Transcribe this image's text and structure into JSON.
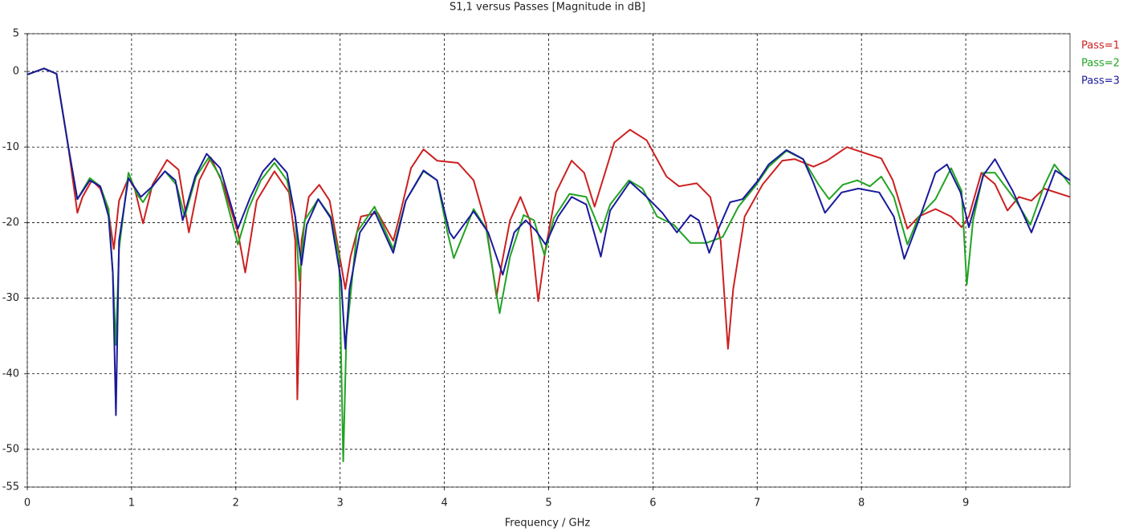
{
  "chart_data": {
    "type": "line",
    "title": "S1,1 versus Passes [Magnitude in dB]",
    "xlabel": "Frequency / GHz",
    "xlim": [
      0,
      10
    ],
    "xticks": [
      0,
      1,
      2,
      3,
      4,
      5,
      6,
      7,
      8,
      9
    ],
    "ylim": [
      -55,
      5
    ],
    "yticks": [
      5,
      0,
      -10,
      -20,
      -30,
      -40,
      -50,
      -55
    ],
    "grid": true,
    "legend": "top-right",
    "series": [
      {
        "name": "Pass=1",
        "color": "#cc2020",
        "x": [
          0,
          0.16,
          0.28,
          0.39,
          0.48,
          0.53,
          0.62,
          0.7,
          0.78,
          0.83,
          0.88,
          0.97,
          1.03,
          1.11,
          1.2,
          1.34,
          1.45,
          1.55,
          1.65,
          1.76,
          1.88,
          2.02,
          2.09,
          2.2,
          2.37,
          2.51,
          2.57,
          2.59,
          2.63,
          2.7,
          2.8,
          2.9,
          3.01,
          3.05,
          3.1,
          3.2,
          3.36,
          3.51,
          3.57,
          3.68,
          3.8,
          3.93,
          4.13,
          4.28,
          4.4,
          4.5,
          4.55,
          4.63,
          4.73,
          4.82,
          4.9,
          4.97,
          5.07,
          5.22,
          5.34,
          5.44,
          5.53,
          5.63,
          5.78,
          5.94,
          6.13,
          6.25,
          6.42,
          6.55,
          6.65,
          6.72,
          6.77,
          6.88,
          7.05,
          7.24,
          7.36,
          7.54,
          7.67,
          7.86,
          8.01,
          8.19,
          8.3,
          8.44,
          8.55,
          8.71,
          8.86,
          8.96,
          9.03,
          9.15,
          9.28,
          9.4,
          9.51,
          9.63,
          9.75,
          10
        ],
        "values": [
          -0.4,
          0.4,
          -0.3,
          -9.7,
          -18.7,
          -16.6,
          -14.4,
          -15.5,
          -18.7,
          -23.5,
          -17.1,
          -14.1,
          -15.5,
          -20.1,
          -15,
          -11.7,
          -13,
          -21.3,
          -14.4,
          -11.4,
          -15,
          -21.3,
          -26.6,
          -17.1,
          -13.2,
          -16,
          -22.4,
          -43.4,
          -22.4,
          -16.6,
          -15,
          -17.1,
          -25.6,
          -28.8,
          -24.5,
          -19.2,
          -18.7,
          -22.4,
          -19.2,
          -12.8,
          -10.3,
          -11.8,
          -12.1,
          -14.4,
          -20.3,
          -29.8,
          -25.5,
          -19.7,
          -16.6,
          -19.7,
          -30.4,
          -23.5,
          -16,
          -11.8,
          -13.4,
          -17.9,
          -13.9,
          -9.4,
          -7.7,
          -9.1,
          -13.9,
          -15.2,
          -14.8,
          -16.6,
          -22.4,
          -36.7,
          -28.8,
          -19.2,
          -15,
          -11.8,
          -11.6,
          -12.6,
          -11.8,
          -10,
          -10.7,
          -11.5,
          -14.4,
          -20.8,
          -19.2,
          -18.2,
          -19.2,
          -20.6,
          -19.2,
          -13.4,
          -14.9,
          -18.4,
          -16.6,
          -17.1,
          -15.5,
          -16.6
        ]
      },
      {
        "name": "Pass=2",
        "color": "#22a322",
        "x": [
          0,
          0.16,
          0.28,
          0.39,
          0.48,
          0.6,
          0.7,
          0.78,
          0.82,
          0.85,
          0.88,
          0.97,
          1.05,
          1.11,
          1.22,
          1.32,
          1.43,
          1.51,
          1.62,
          1.74,
          1.85,
          2.02,
          2.12,
          2.24,
          2.37,
          2.49,
          2.57,
          2.61,
          2.66,
          2.79,
          2.91,
          2.99,
          3.03,
          3.06,
          3.16,
          3.33,
          3.51,
          3.63,
          3.8,
          3.93,
          4.03,
          4.09,
          4.28,
          4.4,
          4.53,
          4.63,
          4.76,
          4.86,
          4.96,
          5.05,
          5.2,
          5.36,
          5.5,
          5.59,
          5.77,
          5.9,
          6.04,
          6.2,
          6.36,
          6.51,
          6.67,
          6.82,
          6.98,
          7.11,
          7.28,
          7.44,
          7.59,
          7.69,
          7.82,
          7.96,
          8.08,
          8.19,
          8.31,
          8.44,
          8.55,
          8.71,
          8.86,
          8.96,
          9.01,
          9.07,
          9.17,
          9.28,
          9.48,
          9.62,
          9.75,
          9.85,
          10
        ],
        "values": [
          -0.4,
          0.4,
          -0.3,
          -9.7,
          -16.9,
          -14.1,
          -15.2,
          -18.2,
          -26.6,
          -36.2,
          -23.5,
          -13.4,
          -16.2,
          -17.3,
          -14.8,
          -13.2,
          -15,
          -19.2,
          -13.9,
          -11.4,
          -13.9,
          -22.9,
          -18.2,
          -14.4,
          -12.1,
          -14.4,
          -19.2,
          -27.7,
          -19.7,
          -16.9,
          -19.2,
          -24.5,
          -51.6,
          -35.1,
          -21.3,
          -17.9,
          -23.5,
          -17.1,
          -13.2,
          -14.4,
          -21.3,
          -24.7,
          -18.2,
          -20.8,
          -32,
          -24.5,
          -19,
          -19.7,
          -24.3,
          -19.4,
          -16.2,
          -16.6,
          -21.3,
          -17.6,
          -14.4,
          -15.5,
          -19.2,
          -20.3,
          -22.7,
          -22.7,
          -21.9,
          -17.9,
          -15.2,
          -12.6,
          -10.5,
          -11.6,
          -15,
          -16.9,
          -15,
          -14.4,
          -15.2,
          -13.9,
          -16.6,
          -22.9,
          -19.2,
          -16.9,
          -12.8,
          -15.8,
          -28.2,
          -19.7,
          -13.4,
          -13.4,
          -17.1,
          -20.3,
          -15.2,
          -12.3,
          -15
        ]
      },
      {
        "name": "Pass=3",
        "color": "#1a1a9c",
        "x": [
          0,
          0.16,
          0.28,
          0.39,
          0.48,
          0.6,
          0.7,
          0.78,
          0.82,
          0.85,
          0.88,
          0.97,
          1.09,
          1.2,
          1.32,
          1.42,
          1.49,
          1.61,
          1.72,
          1.85,
          2.02,
          2.14,
          2.26,
          2.37,
          2.49,
          2.57,
          2.63,
          2.68,
          2.79,
          2.91,
          3.01,
          3.05,
          3.09,
          3.19,
          3.33,
          3.51,
          3.63,
          3.8,
          3.93,
          4.05,
          4.09,
          4.28,
          4.42,
          4.56,
          4.67,
          4.78,
          4.88,
          4.97,
          5.09,
          5.22,
          5.36,
          5.5,
          5.59,
          5.78,
          5.94,
          6.09,
          6.23,
          6.36,
          6.44,
          6.54,
          6.63,
          6.74,
          6.86,
          7.01,
          7.11,
          7.28,
          7.44,
          7.53,
          7.65,
          7.81,
          7.97,
          8.17,
          8.31,
          8.41,
          8.55,
          8.71,
          8.82,
          8.95,
          9.03,
          9.09,
          9.17,
          9.28,
          9.45,
          9.63,
          9.75,
          9.86,
          10
        ],
        "values": [
          -0.4,
          0.4,
          -0.3,
          -9.7,
          -16.9,
          -14.4,
          -15.2,
          -19.2,
          -26.6,
          -45.5,
          -22.4,
          -14.1,
          -16.6,
          -15.2,
          -13.2,
          -14.4,
          -19.7,
          -13.9,
          -10.9,
          -12.8,
          -20.8,
          -16.6,
          -13.2,
          -11.5,
          -13.4,
          -19.2,
          -25.6,
          -20.3,
          -16.9,
          -19.4,
          -27.7,
          -36.7,
          -28.8,
          -21.3,
          -18.5,
          -24,
          -17.1,
          -13.1,
          -14.4,
          -21.3,
          -22.1,
          -18.5,
          -21.3,
          -26.9,
          -21.3,
          -19.7,
          -21.1,
          -22.9,
          -19.2,
          -16.6,
          -17.6,
          -24.5,
          -18.4,
          -14.6,
          -16.6,
          -18.7,
          -21.3,
          -19,
          -19.7,
          -24,
          -20.8,
          -17.3,
          -16.9,
          -14.4,
          -12.3,
          -10.4,
          -11.6,
          -14.4,
          -18.7,
          -16,
          -15.5,
          -16,
          -19.2,
          -24.8,
          -19.7,
          -13.4,
          -12.3,
          -16,
          -20.6,
          -17.6,
          -13.7,
          -11.6,
          -15.8,
          -21.3,
          -17.1,
          -13.1,
          -14.4
        ]
      }
    ]
  }
}
